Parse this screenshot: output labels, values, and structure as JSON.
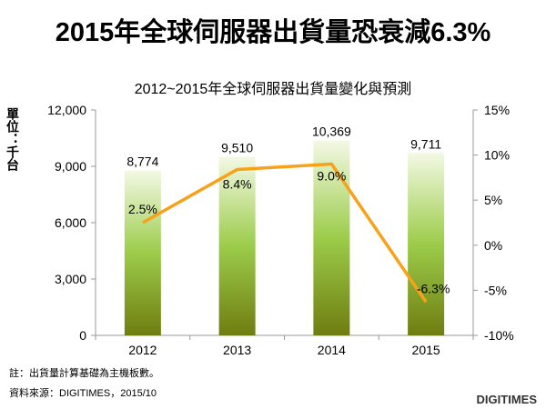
{
  "headline": "2015年全球伺服器出貨量恐衰減6.3%",
  "note": "註：出貨量計算基礎為主機板數。",
  "source": "資料來源：DIGITIMES，2015/10",
  "brand": "DIGITIMES",
  "colors": {
    "bar_top": "#f3f9e4",
    "bar_mid": "#9ccc4a",
    "bar_bottom": "#6f7d10",
    "line": "#f7a21b",
    "axis": "#999999"
  },
  "chart_data": {
    "type": "bar",
    "title": "2012~2015年全球伺服器出貨量變化與預測",
    "ylabel": "單位：千台",
    "categories": [
      "2012",
      "2013",
      "2014",
      "2015"
    ],
    "series": [
      {
        "type": "bar",
        "axis": "left",
        "values": [
          8774,
          9510,
          10369,
          9711
        ],
        "labels": [
          "8,774",
          "9,510",
          "10,369",
          "9,711"
        ]
      },
      {
        "type": "line",
        "axis": "right",
        "values": [
          2.5,
          8.4,
          9.0,
          -6.3
        ],
        "labels": [
          "2.5%",
          "8.4%",
          "9.0%",
          "-6.3%"
        ]
      }
    ],
    "ylim": [
      0,
      12000
    ],
    "yticks": [
      0,
      3000,
      6000,
      9000,
      12000
    ],
    "ytick_labels": [
      "0",
      "3,000",
      "6,000",
      "9,000",
      "12,000"
    ],
    "y2lim": [
      -10,
      15
    ],
    "y2ticks": [
      -10,
      -5,
      0,
      5,
      10,
      15
    ],
    "y2tick_labels": [
      "-10%",
      "-5%",
      "0%",
      "5%",
      "10%",
      "15%"
    ],
    "grid": false
  }
}
